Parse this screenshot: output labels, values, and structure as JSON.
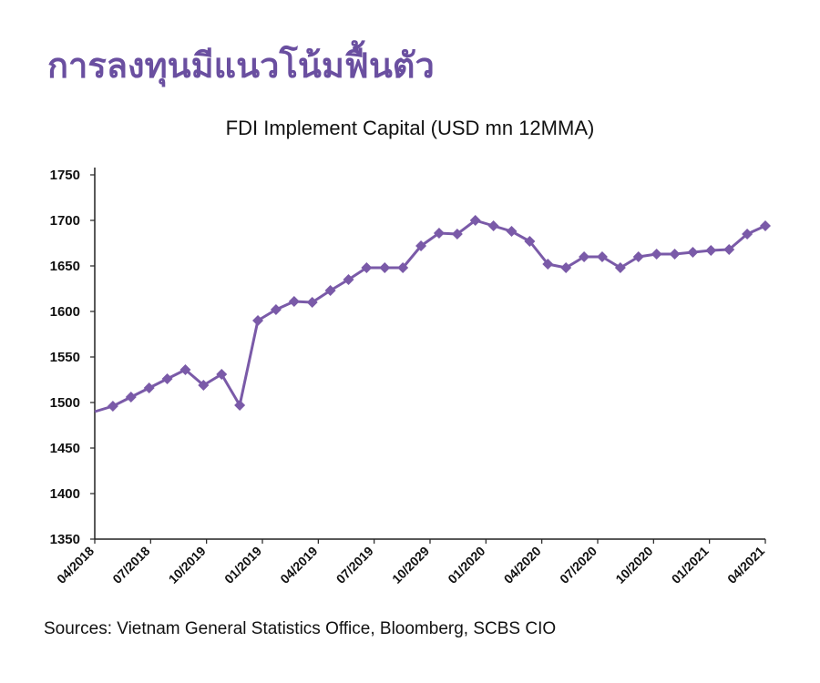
{
  "headline": "การลงทุนมีแนวโน้มฟื้นตัว",
  "source": "Sources: Vietnam General Statistics Office, Bloomberg, SCBS CIO",
  "chart_data": {
    "type": "line",
    "title": "FDI Implement Capital (USD mn 12MMA)",
    "xlabel": "",
    "ylabel": "",
    "ylim": [
      1350,
      1750
    ],
    "yticks": [
      1350,
      1400,
      1450,
      1500,
      1550,
      1600,
      1650,
      1700,
      1750
    ],
    "xtick_labels": [
      "04/2018",
      "07/2018",
      "10/2019",
      "01/2019",
      "04/2019",
      "07/2019",
      "10/2029",
      "01/2020",
      "04/2020",
      "07/2020",
      "10/2020",
      "01/2021",
      "04/2021"
    ],
    "line_color": "#7a5aa8",
    "grid": false,
    "legend": "none",
    "series": [
      {
        "values": [
          1490,
          1496,
          1506,
          1516,
          1526,
          1536,
          1519,
          1531,
          1497,
          1590,
          1602,
          1611,
          1610,
          1623,
          1635,
          1648,
          1648,
          1648,
          1672,
          1686,
          1685,
          1700,
          1694,
          1688,
          1677,
          1652,
          1648,
          1660,
          1660,
          1648,
          1660,
          1663,
          1663,
          1665,
          1667,
          1668,
          1685,
          1694
        ]
      }
    ]
  }
}
